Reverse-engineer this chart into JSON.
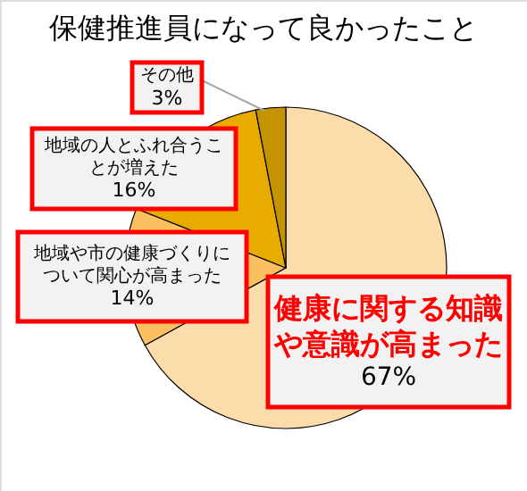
{
  "chart_data": {
    "type": "pie",
    "title": "保健推進員になって良かったこと",
    "categories": [
      "健康に関する知識や意識が高まった",
      "地域や市の健康づくりについて関心が高まった",
      "地域の人とふれ合うことが増えた",
      "その他"
    ],
    "values": [
      67,
      14,
      16,
      3
    ],
    "value_labels": [
      "67%",
      "14%",
      "16%",
      "3%"
    ],
    "colors": [
      "#fddcab",
      "#fac060",
      "#e8ac00",
      "#c39300"
    ]
  }
}
